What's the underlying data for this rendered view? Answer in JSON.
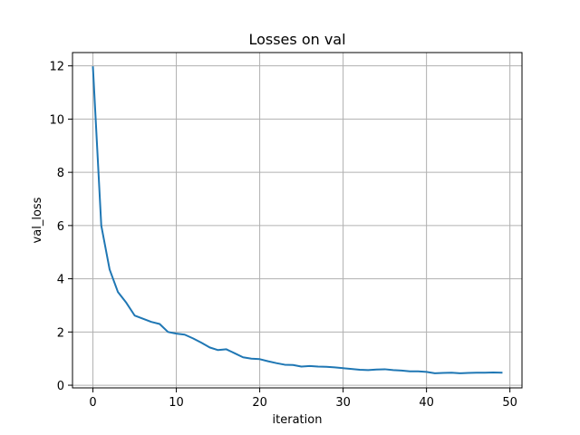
{
  "chart_data": {
    "type": "line",
    "title": "Losses on val",
    "xlabel": "iteration",
    "ylabel": "val_loss",
    "xlim": [
      -2.45,
      51.45
    ],
    "ylim": [
      -0.1,
      12.5
    ],
    "xticks": [
      0,
      10,
      20,
      30,
      40,
      50
    ],
    "yticks": [
      0,
      2,
      4,
      6,
      8,
      10,
      12
    ],
    "grid": true,
    "legend": "none",
    "line_color": "#1f77b4",
    "series": [
      {
        "x": [
          0,
          1,
          2,
          3,
          4,
          5,
          6,
          7,
          8,
          9,
          10,
          11,
          12,
          13,
          14,
          15,
          16,
          17,
          18,
          19,
          20,
          21,
          22,
          23,
          24,
          25,
          26,
          27,
          28,
          29,
          30,
          31,
          32,
          33,
          34,
          35,
          36,
          37,
          38,
          39,
          40,
          41,
          42,
          43,
          44,
          45,
          46,
          47,
          48,
          49
        ],
        "values": [
          11.95,
          6.0,
          4.35,
          3.5,
          3.1,
          2.62,
          2.5,
          2.38,
          2.3,
          2.0,
          1.94,
          1.9,
          1.76,
          1.6,
          1.42,
          1.32,
          1.35,
          1.2,
          1.05,
          1.0,
          0.98,
          0.9,
          0.83,
          0.77,
          0.76,
          0.7,
          0.72,
          0.7,
          0.69,
          0.67,
          0.64,
          0.61,
          0.58,
          0.57,
          0.59,
          0.6,
          0.57,
          0.55,
          0.52,
          0.52,
          0.5,
          0.45,
          0.46,
          0.47,
          0.45,
          0.46,
          0.47,
          0.47,
          0.48,
          0.47
        ]
      }
    ]
  }
}
